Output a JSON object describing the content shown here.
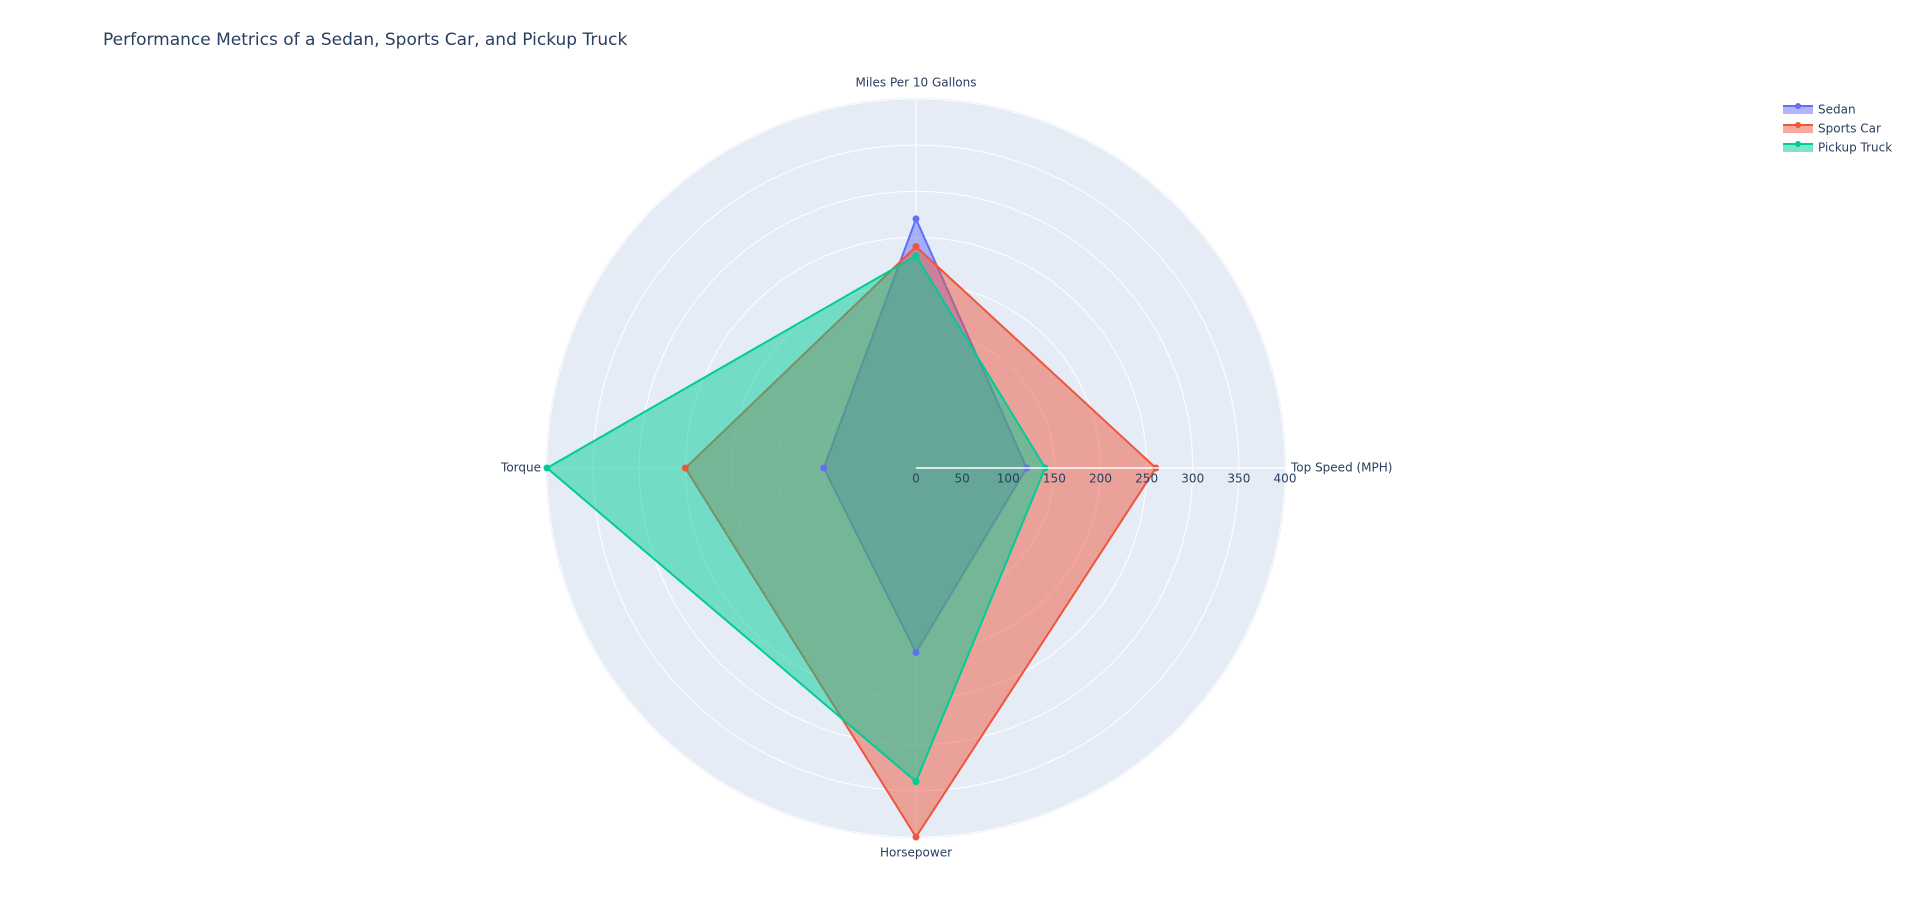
{
  "chart_data": {
    "type": "radar",
    "title": "Performance Metrics of a Sedan, Sports Car, and Pickup Truck",
    "categories": [
      "Top Speed (MPH)",
      "Miles Per 10 Gallons",
      "Torque",
      "Horsepower"
    ],
    "series": [
      {
        "name": "Sedan",
        "color": "#636efa",
        "values": [
          120,
          270,
          100,
          200
        ]
      },
      {
        "name": "Sports Car",
        "color": "#EF553B",
        "values": [
          260,
          240,
          250,
          400
        ]
      },
      {
        "name": "Pickup Truck",
        "color": "#00cc96",
        "values": [
          140,
          230,
          400,
          340
        ]
      }
    ],
    "rlim": [
      0,
      400
    ],
    "rticks": [
      0,
      50,
      100,
      150,
      200,
      250,
      300,
      350,
      400
    ],
    "grid": true,
    "legend": "top-right"
  }
}
